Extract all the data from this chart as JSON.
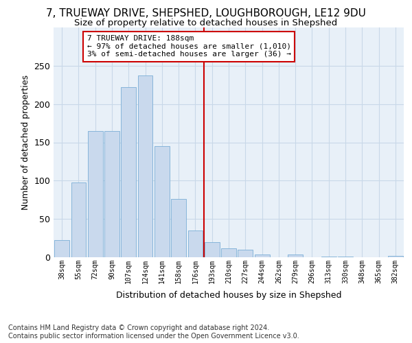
{
  "title": "7, TRUEWAY DRIVE, SHEPSHED, LOUGHBOROUGH, LE12 9DU",
  "subtitle": "Size of property relative to detached houses in Shepshed",
  "xlabel_bottom": "Distribution of detached houses by size in Shepshed",
  "ylabel": "Number of detached properties",
  "bar_labels": [
    "38sqm",
    "55sqm",
    "72sqm",
    "90sqm",
    "107sqm",
    "124sqm",
    "141sqm",
    "158sqm",
    "176sqm",
    "193sqm",
    "210sqm",
    "227sqm",
    "244sqm",
    "262sqm",
    "279sqm",
    "296sqm",
    "313sqm",
    "330sqm",
    "348sqm",
    "365sqm",
    "382sqm"
  ],
  "bar_values": [
    22,
    98,
    165,
    165,
    222,
    237,
    145,
    76,
    35,
    20,
    12,
    10,
    4,
    0,
    4,
    0,
    1,
    1,
    0,
    0,
    2
  ],
  "bar_color": "#c9d9ed",
  "bar_edge_color": "#7aaed6",
  "vline_pos": 8.5,
  "vline_color": "#cc0000",
  "annotation_text": "7 TRUEWAY DRIVE: 188sqm\n← 97% of detached houses are smaller (1,010)\n3% of semi-detached houses are larger (36) →",
  "annotation_box_color": "#cc0000",
  "ylim": [
    0,
    300
  ],
  "yticks": [
    0,
    50,
    100,
    150,
    200,
    250
  ],
  "grid_color": "#c8d8e8",
  "background_color": "#e8f0f8",
  "footnote": "Contains HM Land Registry data © Crown copyright and database right 2024.\nContains public sector information licensed under the Open Government Licence v3.0.",
  "title_fontsize": 11,
  "subtitle_fontsize": 9.5,
  "annot_fontsize": 8,
  "ylabel_fontsize": 9,
  "footnote_fontsize": 7,
  "xtick_fontsize": 7,
  "ytick_fontsize": 9
}
